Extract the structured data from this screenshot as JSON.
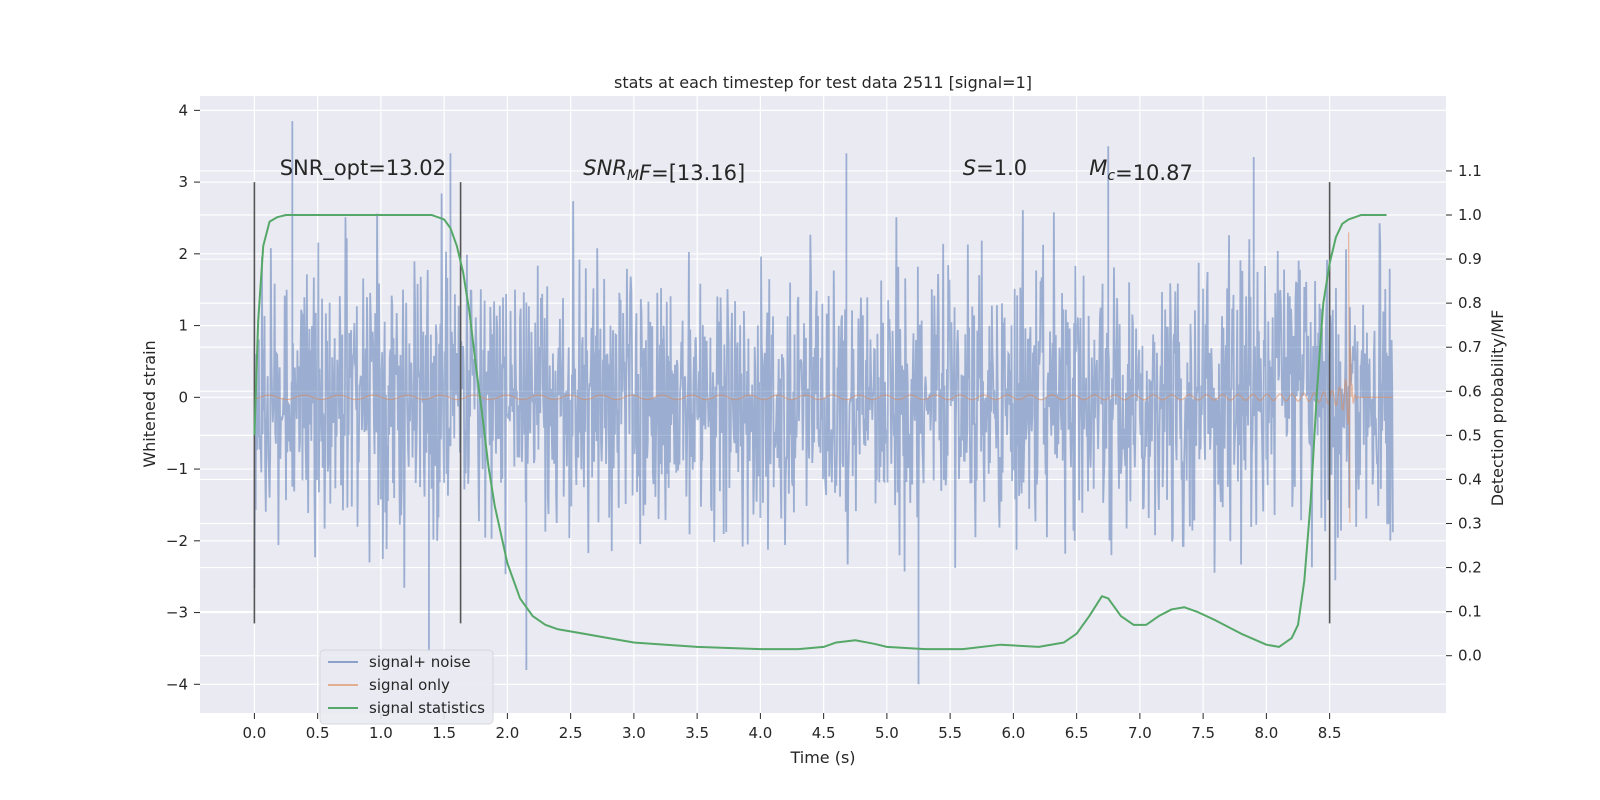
{
  "chart_data": {
    "type": "line",
    "title": "stats at each timestep for test data 2511 [signal=1]",
    "xlabel": "Time (s)",
    "ylabel": "Whitened strain",
    "y2label": "Detection probability/MF",
    "xlim": [
      -0.43,
      9.42
    ],
    "ylim": [
      -4.4,
      4.2
    ],
    "y2lim": [
      -0.13,
      1.27
    ],
    "xticks": [
      0.0,
      0.5,
      1.0,
      1.5,
      2.0,
      2.5,
      3.0,
      3.5,
      4.0,
      4.5,
      5.0,
      5.5,
      6.0,
      6.5,
      7.0,
      7.5,
      8.0,
      8.5
    ],
    "xtick_labels": [
      "0.0",
      "0.5",
      "1.0",
      "1.5",
      "2.0",
      "2.5",
      "3.0",
      "3.5",
      "4.0",
      "4.5",
      "5.0",
      "5.5",
      "6.0",
      "6.5",
      "7.0",
      "7.5",
      "8.0",
      "8.5"
    ],
    "yticks": [
      -4,
      -3,
      -2,
      -1,
      0,
      1,
      2,
      3,
      4
    ],
    "ytick_labels": [
      "−4",
      "−3",
      "−2",
      "−1",
      "0",
      "1",
      "2",
      "3",
      "4"
    ],
    "y2ticks": [
      0.0,
      0.1,
      0.2,
      0.3,
      0.4,
      0.5,
      0.6,
      0.7,
      0.8,
      0.9,
      1.0,
      1.1
    ],
    "y2tick_labels": [
      "0.0",
      "0.1",
      "0.2",
      "0.3",
      "0.4",
      "0.5",
      "0.6",
      "0.7",
      "0.8",
      "0.9",
      "1.0",
      "1.1"
    ],
    "vlines": [
      0.0,
      1.63,
      8.5
    ],
    "vline_range": [
      -3.15,
      3.0
    ],
    "annotations": [
      {
        "parts": [
          {
            "text": "SNR_opt=13.02",
            "italic": false
          }
        ],
        "x": 0.2,
        "y": 3.1
      },
      {
        "parts": [
          {
            "text": "SNR",
            "italic": true
          },
          {
            "text": "M",
            "italic": true,
            "sub": true
          },
          {
            "text": "F",
            "italic": true
          },
          {
            "text": "=[13.16]",
            "italic": false
          }
        ],
        "x": 2.6,
        "y": 3.1
      },
      {
        "parts": [
          {
            "text": "S",
            "italic": true
          },
          {
            "text": "=1.0",
            "italic": false
          }
        ],
        "x": 5.6,
        "y": 3.1
      },
      {
        "parts": [
          {
            "text": "M",
            "italic": true
          },
          {
            "text": "c",
            "italic": true,
            "sub": true
          },
          {
            "text": "=10.87",
            "italic": false
          }
        ],
        "x": 6.6,
        "y": 3.1
      }
    ],
    "noise": {
      "t_start": 0.0,
      "t_end": 9.0,
      "n": 1800,
      "band_sigma": 0.95,
      "max_spike": 3.85,
      "min_spike": -4.0
    },
    "signal": {
      "t_start": 0.0,
      "t_merge": 8.67,
      "t_end": 9.0,
      "peak_amp": 2.3,
      "min_amp": -1.75
    },
    "series": [
      {
        "name": "signal+ noise",
        "color": "#4c72b0",
        "opacity": 0.5,
        "axis": "left"
      },
      {
        "name": "signal only",
        "color": "#dd8452",
        "opacity": 0.5,
        "axis": "left"
      },
      {
        "name": "signal statistics",
        "color": "#55a868",
        "axis": "right",
        "x": [
          0.0,
          0.03,
          0.07,
          0.12,
          0.18,
          0.25,
          0.35,
          0.5,
          0.8,
          1.2,
          1.4,
          1.5,
          1.55,
          1.6,
          1.65,
          1.7,
          1.75,
          1.8,
          1.85,
          1.9,
          2.0,
          2.1,
          2.2,
          2.3,
          2.4,
          2.6,
          2.8,
          3.0,
          3.5,
          4.0,
          4.3,
          4.5,
          4.6,
          4.75,
          4.9,
          5.0,
          5.3,
          5.6,
          5.9,
          6.2,
          6.4,
          6.5,
          6.6,
          6.7,
          6.75,
          6.85,
          6.95,
          7.05,
          7.15,
          7.25,
          7.35,
          7.45,
          7.6,
          7.8,
          8.0,
          8.1,
          8.2,
          8.25,
          8.3,
          8.35,
          8.4,
          8.45,
          8.5,
          8.55,
          8.6,
          8.65,
          8.75,
          8.95
        ],
        "values": [
          0.5,
          0.76,
          0.93,
          0.985,
          0.995,
          1.0,
          1.0,
          1.0,
          1.0,
          1.0,
          1.0,
          0.99,
          0.97,
          0.93,
          0.87,
          0.78,
          0.66,
          0.55,
          0.43,
          0.34,
          0.21,
          0.13,
          0.09,
          0.07,
          0.06,
          0.05,
          0.04,
          0.03,
          0.02,
          0.015,
          0.015,
          0.02,
          0.03,
          0.035,
          0.027,
          0.02,
          0.015,
          0.015,
          0.025,
          0.02,
          0.03,
          0.05,
          0.09,
          0.135,
          0.13,
          0.09,
          0.07,
          0.07,
          0.09,
          0.105,
          0.11,
          0.1,
          0.08,
          0.05,
          0.025,
          0.02,
          0.04,
          0.07,
          0.17,
          0.35,
          0.6,
          0.8,
          0.89,
          0.95,
          0.98,
          0.99,
          1.0,
          1.0
        ]
      }
    ],
    "legend_position": "lower-left"
  }
}
